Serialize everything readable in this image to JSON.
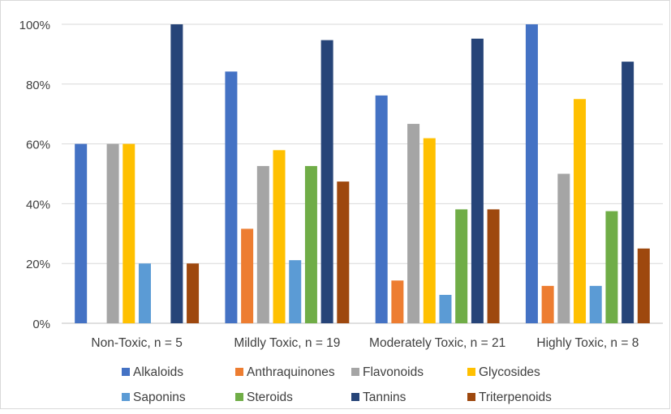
{
  "chart_data": {
    "type": "bar",
    "categories": [
      "Non-Toxic, n = 5",
      "Mildly Toxic, n = 19",
      "Moderately Toxic, n = 21",
      "Highly Toxic, n = 8"
    ],
    "ylim": [
      0,
      100
    ],
    "yticks": [
      0,
      20,
      40,
      60,
      80,
      100
    ],
    "ytick_labels": [
      "0%",
      "20%",
      "40%",
      "60%",
      "80%",
      "100%"
    ],
    "grid": true,
    "legend_position": "bottom",
    "series": [
      {
        "name": "Alkaloids",
        "color": "#4472C4",
        "values": [
          60,
          84.2,
          76.2,
          100
        ]
      },
      {
        "name": "Anthraquinones",
        "color": "#ED7D31",
        "values": [
          0,
          31.6,
          14.3,
          12.5
        ]
      },
      {
        "name": "Flavonoids",
        "color": "#A5A5A5",
        "values": [
          60,
          52.6,
          66.7,
          50
        ]
      },
      {
        "name": "Glycosides",
        "color": "#FFC000",
        "values": [
          60,
          57.9,
          61.9,
          75
        ]
      },
      {
        "name": "Saponins",
        "color": "#5B9BD5",
        "values": [
          20,
          21.1,
          9.5,
          12.5
        ]
      },
      {
        "name": "Steroids",
        "color": "#70AD47",
        "values": [
          0,
          52.6,
          38.1,
          37.5
        ]
      },
      {
        "name": "Tannins",
        "color": "#264478",
        "values": [
          100,
          94.7,
          95.2,
          87.5
        ]
      },
      {
        "name": "Triterpenoids",
        "color": "#9E480E",
        "values": [
          20,
          47.4,
          38.1,
          25
        ]
      }
    ]
  }
}
